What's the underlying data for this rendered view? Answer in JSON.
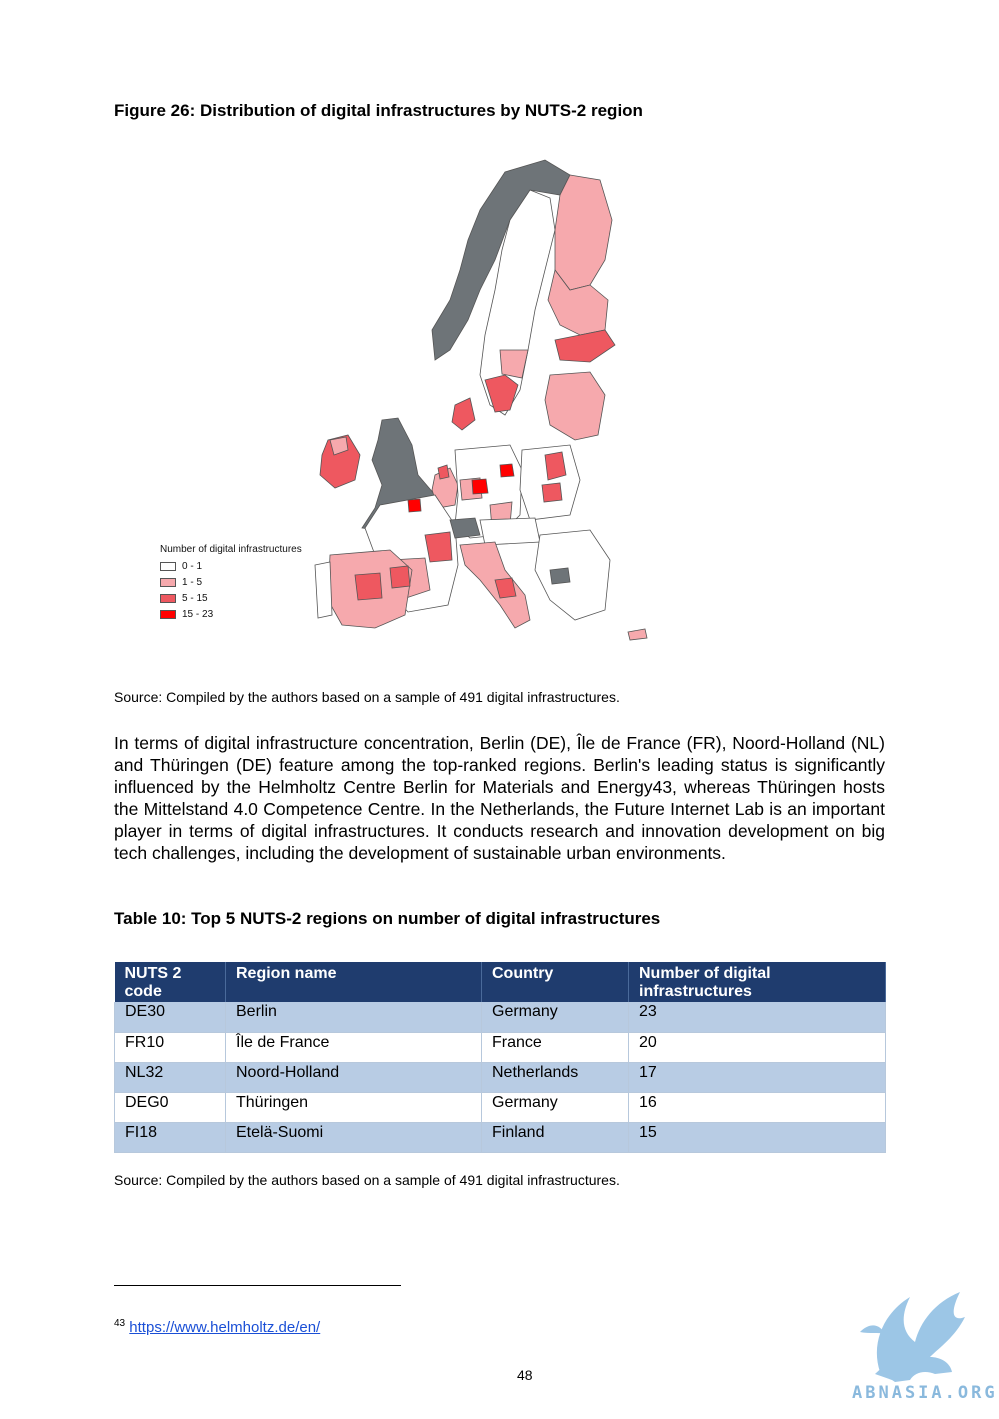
{
  "figure": {
    "title": "Figure 26: Distribution of digital infrastructures by NUTS-2 region",
    "legend": {
      "title": "Number of digital infrastructures",
      "items": [
        {
          "label": "0 - 1",
          "color": "#ffffff"
        },
        {
          "label": "1 - 5",
          "color": "#f6a9ad"
        },
        {
          "label": "5 - 15",
          "color": "#ee5860"
        },
        {
          "label": "15 - 23",
          "color": "#ff0000"
        }
      ]
    },
    "colors": {
      "no_data": "#6e7478",
      "border": "#555555"
    },
    "source": "Source: Compiled by the authors based on a sample of 491 digital infrastructures."
  },
  "paragraph": "In terms of digital infrastructure concentration, Berlin (DE), Île de France (FR), Noord-Holland (NL) and Thüringen (DE) feature among the top-ranked regions. Berlin's leading status is significantly influenced by the Helmholtz Centre Berlin for Materials and Energy43, whereas Thüringen hosts the Mittelstand 4.0 Competence Centre. In the Netherlands, the Future Internet Lab is an important player in terms of digital infrastructures. It conducts research and innovation development on big tech challenges, including the development of sustainable urban environments.",
  "table": {
    "title": "Table 10: Top 5 NUTS-2 regions on number of digital infrastructures",
    "headers": {
      "code": "NUTS 2 code",
      "region": "Region name",
      "country": "Country",
      "number": "Number of digital infrastructures"
    },
    "rows": [
      {
        "code": "DE30",
        "region": "Berlin",
        "country": "Germany",
        "number": "23"
      },
      {
        "code": "FR10",
        "region": "Île de France",
        "country": "France",
        "number": "20"
      },
      {
        "code": "NL32",
        "region": "Noord-Holland",
        "country": "Netherlands",
        "number": "17"
      },
      {
        "code": "DEG0",
        "region": "Thüringen",
        "country": "Germany",
        "number": "16"
      },
      {
        "code": "FI18",
        "region": "Etelä-Suomi",
        "country": "Finland",
        "number": "15"
      }
    ],
    "source": "Source: Compiled by the authors based on a sample of 491 digital infrastructures."
  },
  "footnote": {
    "number": "43",
    "link": "https://www.helmholtz.de/en/"
  },
  "page_number": "48",
  "watermark": {
    "text": "ABNASIA.ORG",
    "color": "#8ab9dd"
  }
}
